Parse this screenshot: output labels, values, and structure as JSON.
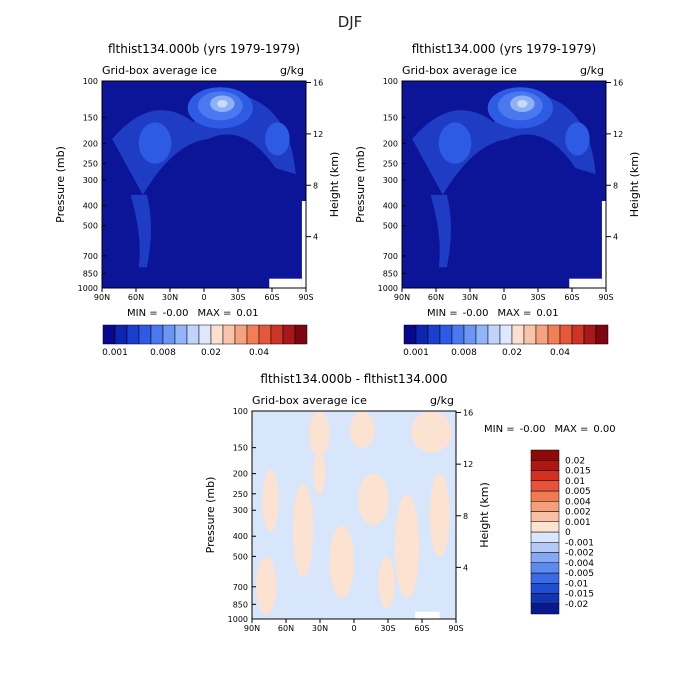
{
  "figure": {
    "title": "DJF"
  },
  "chart_data": [
    {
      "type": "heatmap",
      "id": "p1",
      "title": "flthist134.000b (yrs 1979-1979)",
      "variable": "Grid-box average ice",
      "units": "g/kg",
      "xlabel": "",
      "ylabel": "Pressure (mb)",
      "ylabel_right": "Height (km)",
      "x_ticks": [
        "90N",
        "60N",
        "30N",
        "0",
        "30S",
        "60S",
        "90S"
      ],
      "pressure_ticks": [
        100,
        150,
        200,
        250,
        300,
        400,
        500,
        700,
        850,
        1000
      ],
      "height_ticks": [
        16,
        12,
        8,
        4
      ],
      "min_label": "MIN =",
      "min_value": "-0.00",
      "max_label": "MAX =",
      "max_value": "0.01",
      "colorbar": {
        "orientation": "horizontal",
        "colors": [
          "#08088f",
          "#0e25b0",
          "#1a3fcf",
          "#2d5be4",
          "#4a78ef",
          "#6b96f4",
          "#92b4f8",
          "#bfd3fb",
          "#dde8fd",
          "#fbe0d0",
          "#f9c4a8",
          "#f7a27e",
          "#f27e57",
          "#e6583a",
          "#cc3426",
          "#a8171a",
          "#7d0610"
        ],
        "labels": [
          "0.001",
          "0.008",
          "0.02",
          "0.04"
        ]
      }
    },
    {
      "type": "heatmap",
      "id": "p2",
      "title": "flthist134.000 (yrs 1979-1979)",
      "variable": "Grid-box average ice",
      "units": "g/kg",
      "xlabel": "",
      "ylabel": "Pressure (mb)",
      "ylabel_right": "Height (km)",
      "x_ticks": [
        "90N",
        "60N",
        "30N",
        "0",
        "30S",
        "60S",
        "90S"
      ],
      "pressure_ticks": [
        100,
        150,
        200,
        250,
        300,
        400,
        500,
        700,
        850,
        1000
      ],
      "height_ticks": [
        16,
        12,
        8,
        4
      ],
      "min_label": "MIN =",
      "min_value": "-0.00",
      "max_label": "MAX =",
      "max_value": "0.01",
      "colorbar": {
        "orientation": "horizontal",
        "colors": [
          "#08088f",
          "#0e25b0",
          "#1a3fcf",
          "#2d5be4",
          "#4a78ef",
          "#6b96f4",
          "#92b4f8",
          "#bfd3fb",
          "#dde8fd",
          "#fbe0d0",
          "#f9c4a8",
          "#f7a27e",
          "#f27e57",
          "#e6583a",
          "#cc3426",
          "#a8171a",
          "#7d0610"
        ],
        "labels": [
          "0.001",
          "0.008",
          "0.02",
          "0.04"
        ]
      }
    },
    {
      "type": "heatmap",
      "id": "p3",
      "title": "flthist134.000b - flthist134.000",
      "variable": "Grid-box average ice",
      "units": "g/kg",
      "xlabel": "",
      "ylabel": "Pressure (mb)",
      "ylabel_right": "Height (km)",
      "x_ticks": [
        "90N",
        "60N",
        "30N",
        "0",
        "30S",
        "60S",
        "90S"
      ],
      "pressure_ticks": [
        100,
        150,
        200,
        250,
        300,
        400,
        500,
        700,
        850,
        1000
      ],
      "height_ticks": [
        16,
        12,
        8,
        4
      ],
      "min_label": "MIN =",
      "min_value": "-0.00",
      "max_label": "MAX =",
      "max_value": "0.00",
      "colorbar": {
        "orientation": "vertical",
        "colors": [
          "#0a1a8c",
          "#1334b0",
          "#1f4fd0",
          "#3a6be6",
          "#5d8aee",
          "#85a8f4",
          "#b3c9f8",
          "#d9e6fb",
          "#fde3d0",
          "#f8c2a2",
          "#f59f7a",
          "#f07a52",
          "#e6523a",
          "#d3301f",
          "#b01612",
          "#8c0a0a"
        ],
        "labels": [
          "-0.02",
          "-0.015",
          "-0.01",
          "-0.005",
          "-0.004",
          "-0.002",
          "-0.001",
          "0",
          "0.001",
          "0.002",
          "0.004",
          "0.005",
          "0.01",
          "0.015",
          "0.02"
        ]
      }
    }
  ]
}
